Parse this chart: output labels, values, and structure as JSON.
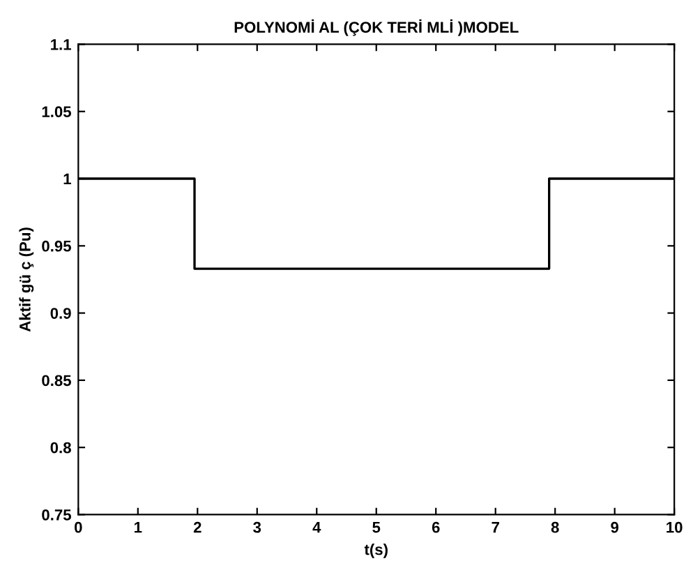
{
  "chart_data": {
    "type": "step",
    "title": "POLYNOMİ AL (ÇOK TERİ MLİ )MODEL",
    "xlabel": "t(s)",
    "ylabel": "Aktif gü ç (Pu)",
    "series": [
      {
        "color": "#000000",
        "x": [
          0,
          1.95,
          7.9,
          10
        ],
        "values": [
          1,
          0.933,
          1,
          1
        ]
      }
    ],
    "xlim": [
      0,
      10
    ],
    "xticks": [
      0,
      1,
      2,
      3,
      4,
      5,
      6,
      7,
      8,
      9,
      10
    ],
    "ylim": [
      0.75,
      1.1
    ],
    "yticks": [
      0.75,
      0.8,
      0.85,
      0.9,
      0.95,
      1,
      1.05,
      1.1
    ],
    "grid": false,
    "legend": false,
    "line_style": "solid",
    "marker": "none"
  }
}
